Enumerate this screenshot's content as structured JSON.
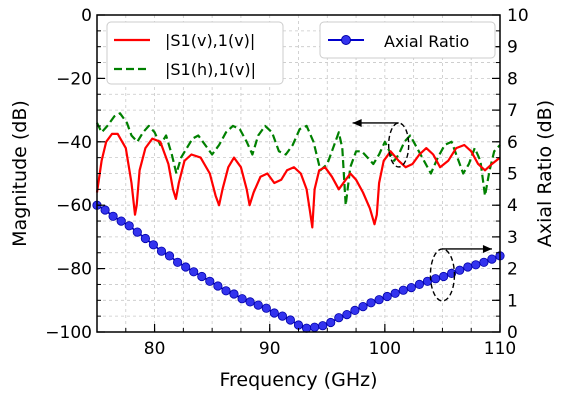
{
  "chart_data": {
    "type": "line",
    "xlabel": "Frequency (GHz)",
    "ylabel_left": "Magnitude (dB)",
    "ylabel_right": "Axial Ratio (dB)",
    "xlim": [
      75,
      110
    ],
    "ylim_left": [
      -100,
      0
    ],
    "ylim_right": [
      0,
      10
    ],
    "x_ticks": [
      "80",
      "90",
      "100",
      "110"
    ],
    "y_ticks_left": [
      "0",
      "−20",
      "−40",
      "−60",
      "−80",
      "−100"
    ],
    "y_ticks_right": [
      "0",
      "1",
      "2",
      "3",
      "4",
      "5",
      "6",
      "7",
      "8",
      "9",
      "10"
    ],
    "grid": true,
    "legend_left": {
      "placement": "top-left",
      "entries": [
        "|S1(v),1(v)|",
        "|S1(h),1(v)|"
      ]
    },
    "legend_right": {
      "placement": "top-right",
      "entries": [
        "Axial Ratio"
      ]
    },
    "colors": {
      "s11v": "#ff0000",
      "s11h": "#008000",
      "ar": "#0000cc",
      "ar_marker": "#3333ee"
    },
    "series": [
      {
        "name": "|S1(v),1(v)|",
        "axis": "left",
        "style": "solid",
        "x": [
          75.0,
          75.4,
          75.8,
          76.3,
          76.8,
          77.5,
          78.0,
          78.3,
          78.45,
          78.7,
          79.2,
          79.8,
          80.5,
          81.2,
          81.6,
          81.85,
          82.1,
          82.6,
          83.2,
          84.0,
          84.8,
          85.3,
          85.6,
          85.9,
          86.4,
          86.9,
          87.5,
          88.0,
          88.25,
          88.6,
          89.2,
          89.8,
          90.4,
          91.0,
          91.5,
          92.1,
          92.7,
          93.2,
          93.5,
          93.7,
          93.9,
          94.3,
          94.8,
          95.4,
          96.0,
          96.6,
          97.0,
          97.5,
          98.1,
          98.7,
          99.1,
          99.3,
          99.5,
          99.9,
          100.5,
          101.2,
          101.8,
          102.4,
          103.0,
          103.6,
          104.2,
          104.8,
          105.5,
          106.2,
          106.9,
          107.5,
          108.1,
          108.7,
          109.3,
          110.0
        ],
        "y": [
          -56,
          -46,
          -40,
          -37.5,
          -37.5,
          -42,
          -53,
          -63,
          -60,
          -49,
          -42,
          -39,
          -40,
          -47,
          -55,
          -58,
          -53,
          -46,
          -44,
          -45,
          -50,
          -57,
          -60,
          -55,
          -48,
          -45,
          -48,
          -55,
          -60,
          -56,
          -51,
          -50,
          -53,
          -52,
          -49,
          -48,
          -50,
          -55,
          -62,
          -67,
          -55,
          -49,
          -48,
          -51,
          -55,
          -52,
          -50,
          -52,
          -56,
          -61,
          -66,
          -63,
          -53,
          -46,
          -43,
          -46,
          -48,
          -47,
          -44,
          -42,
          -44,
          -48,
          -46,
          -42,
          -41,
          -43,
          -47,
          -49,
          -47,
          -45
        ]
      },
      {
        "name": "|S1(h),1(v)|",
        "axis": "left",
        "style": "dashed",
        "x": [
          75.0,
          75.4,
          75.9,
          76.5,
          77.0,
          77.6,
          78.0,
          78.5,
          79.0,
          79.5,
          80.0,
          80.5,
          81.0,
          81.5,
          81.9,
          82.3,
          82.8,
          83.3,
          83.8,
          84.4,
          85.0,
          85.6,
          86.2,
          86.8,
          87.4,
          88.0,
          88.5,
          89.0,
          89.6,
          90.2,
          90.8,
          91.4,
          92.0,
          92.6,
          93.2,
          93.8,
          94.4,
          95.0,
          95.6,
          96.0,
          96.3,
          96.6,
          97.0,
          97.5,
          98.0,
          98.5,
          99.0,
          99.5,
          100.0,
          100.4,
          100.8,
          101.2,
          101.7,
          102.2,
          102.8,
          103.4,
          104.0,
          104.6,
          105.2,
          105.8,
          106.3,
          106.8,
          107.3,
          107.8,
          108.3,
          108.7,
          109.1,
          109.5,
          110.0
        ],
        "y": [
          -34,
          -37,
          -35,
          -32,
          -31,
          -34,
          -38,
          -40,
          -37,
          -35,
          -37,
          -41,
          -38,
          -44,
          -50,
          -45,
          -42,
          -39,
          -38,
          -41,
          -44,
          -41,
          -37,
          -35,
          -36,
          -40,
          -44,
          -38,
          -35,
          -37,
          -43,
          -44,
          -41,
          -36,
          -35,
          -40,
          -49,
          -47,
          -41,
          -37,
          -42,
          -60,
          -48,
          -43,
          -43,
          -45,
          -47,
          -44,
          -40,
          -43,
          -46,
          -44,
          -40,
          -38,
          -42,
          -46,
          -50,
          -45,
          -41,
          -40,
          -45,
          -50,
          -47,
          -42,
          -46,
          -57,
          -49,
          -43,
          -41
        ]
      },
      {
        "name": "Axial Ratio",
        "axis": "right",
        "style": "solid-marker",
        "x": [
          75.0,
          75.7,
          76.4,
          77.1,
          77.8,
          78.5,
          79.2,
          79.9,
          80.6,
          81.3,
          82.0,
          82.7,
          83.4,
          84.1,
          84.8,
          85.5,
          86.2,
          86.9,
          87.6,
          88.3,
          89.0,
          89.7,
          90.4,
          91.1,
          91.8,
          92.5,
          93.2,
          93.9,
          94.6,
          95.3,
          96.0,
          96.7,
          97.4,
          98.1,
          98.8,
          99.5,
          100.2,
          100.9,
          101.6,
          102.3,
          103.0,
          103.7,
          104.4,
          105.1,
          105.8,
          106.5,
          107.2,
          107.9,
          108.6,
          109.3,
          110.0
        ],
        "y": [
          4.0,
          3.85,
          3.65,
          3.5,
          3.35,
          3.15,
          2.95,
          2.75,
          2.55,
          2.4,
          2.2,
          2.05,
          1.9,
          1.75,
          1.6,
          1.45,
          1.3,
          1.2,
          1.05,
          0.95,
          0.85,
          0.75,
          0.6,
          0.5,
          0.38,
          0.22,
          0.12,
          0.15,
          0.2,
          0.3,
          0.45,
          0.55,
          0.68,
          0.8,
          0.92,
          1.02,
          1.12,
          1.22,
          1.32,
          1.4,
          1.5,
          1.6,
          1.68,
          1.75,
          1.85,
          1.95,
          2.05,
          2.12,
          2.2,
          2.3,
          2.4
        ]
      }
    ],
    "annotations": [
      {
        "type": "ellipse-arrow",
        "target": "|S1(h),1(v)|",
        "direction": "left",
        "center_x": 101.2,
        "center_y_left": -41,
        "arrow_to_x": 97.2
      },
      {
        "type": "ellipse-arrow",
        "target": "Axial Ratio",
        "direction": "right",
        "center_x": 105.0,
        "center_y_right": 1.8,
        "arrow_to_x": 109.3
      }
    ]
  }
}
